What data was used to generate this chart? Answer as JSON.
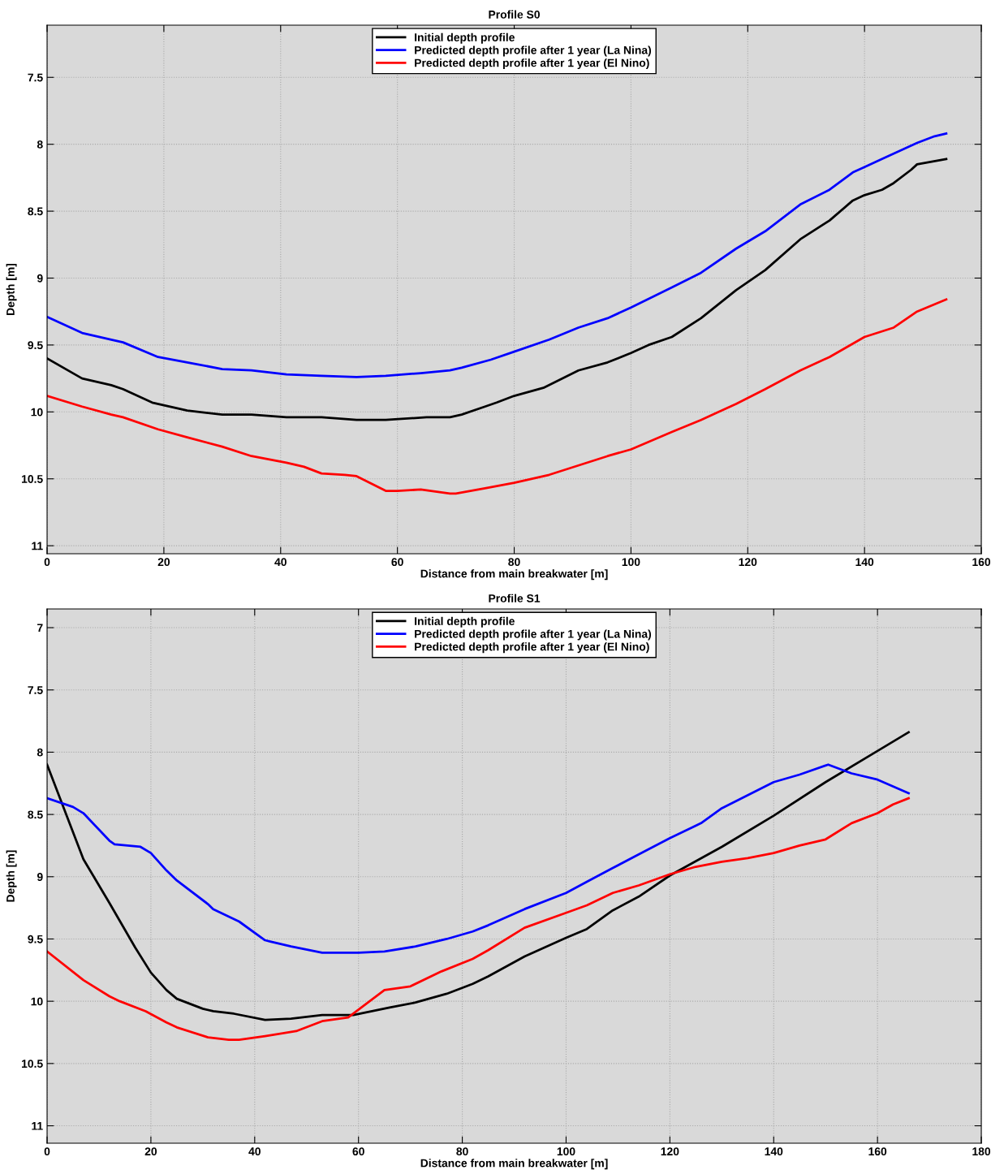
{
  "chart_data": [
    {
      "type": "line",
      "title": "Profile S0",
      "xlabel": "Distance from main breakwater [m]",
      "ylabel": "Depth [m]",
      "xlim": [
        0,
        160
      ],
      "xticks": [
        0,
        20,
        40,
        60,
        80,
        100,
        120,
        140,
        160
      ],
      "ylim": [
        11.06,
        7.11
      ],
      "yticks": [
        7.5,
        8,
        8.5,
        9,
        9.5,
        10,
        10.5,
        11
      ],
      "grid": true,
      "legend": "top",
      "line_style": "solid",
      "marker": "none",
      "series": [
        {
          "name": "Initial depth profile",
          "color": "#000000",
          "x": [
            0,
            6,
            11,
            13,
            18,
            20,
            24,
            30,
            35,
            41,
            47,
            53,
            58,
            65,
            69,
            71,
            75,
            77,
            80,
            85,
            91,
            96,
            100,
            103,
            107,
            112,
            118,
            123,
            129,
            134,
            138,
            140,
            143,
            145,
            148,
            149,
            154
          ],
          "values": [
            9.6,
            9.75,
            9.8,
            9.83,
            9.93,
            9.95,
            9.99,
            10.02,
            10.02,
            10.04,
            10.04,
            10.06,
            10.06,
            10.04,
            10.04,
            10.02,
            9.96,
            9.93,
            9.88,
            9.82,
            9.69,
            9.63,
            9.56,
            9.5,
            9.44,
            9.3,
            9.09,
            8.94,
            8.71,
            8.57,
            8.42,
            8.38,
            8.34,
            8.29,
            8.19,
            8.15,
            8.11
          ]
        },
        {
          "name": "Predicted depth profile after 1 year (La Nina)",
          "color": "#0000ff",
          "x": [
            0,
            6,
            11,
            13,
            19,
            24,
            30,
            35,
            41,
            47,
            53,
            58,
            64,
            69,
            71,
            76,
            80,
            86,
            91,
            96,
            100,
            107,
            112,
            118,
            123,
            129,
            134,
            138,
            140,
            143,
            149,
            152,
            154
          ],
          "values": [
            9.29,
            9.41,
            9.46,
            9.48,
            9.59,
            9.63,
            9.68,
            9.69,
            9.72,
            9.73,
            9.74,
            9.73,
            9.71,
            9.69,
            9.67,
            9.61,
            9.55,
            9.46,
            9.37,
            9.3,
            9.22,
            9.07,
            8.96,
            8.78,
            8.65,
            8.45,
            8.34,
            8.21,
            8.17,
            8.11,
            7.99,
            7.94,
            7.92
          ]
        },
        {
          "name": "Predicted depth profile after 1 year (El Nino)",
          "color": "#ff0000",
          "x": [
            0,
            6,
            11,
            13,
            19,
            24,
            30,
            35,
            41,
            44,
            47,
            51,
            53,
            58,
            60,
            64,
            69,
            70,
            75,
            80,
            86,
            91,
            96,
            100,
            107,
            112,
            118,
            123,
            129,
            134,
            138,
            140,
            145,
            149,
            154
          ],
          "values": [
            9.88,
            9.96,
            10.02,
            10.04,
            10.13,
            10.19,
            10.26,
            10.33,
            10.38,
            10.41,
            10.46,
            10.47,
            10.48,
            10.59,
            10.59,
            10.58,
            10.61,
            10.61,
            10.57,
            10.53,
            10.47,
            10.4,
            10.33,
            10.28,
            10.15,
            10.06,
            9.94,
            9.83,
            9.69,
            9.59,
            9.49,
            9.44,
            9.37,
            9.25,
            9.16
          ]
        }
      ]
    },
    {
      "type": "line",
      "title": "Profile S1",
      "xlabel": "Distance from main breakwater [m]",
      "ylabel": "Depth [m]",
      "xlim": [
        0,
        180
      ],
      "xticks": [
        0,
        20,
        40,
        60,
        80,
        100,
        120,
        140,
        160,
        180
      ],
      "ylim": [
        11.14,
        6.85
      ],
      "yticks": [
        7,
        7.5,
        8,
        8.5,
        9,
        9.5,
        10,
        10.5,
        11
      ],
      "grid": true,
      "legend": "top",
      "line_style": "solid",
      "marker": "none",
      "series": [
        {
          "name": "Initial depth profile",
          "color": "#000000",
          "x": [
            0,
            7,
            12,
            17,
            20,
            23,
            25,
            30,
            32,
            36,
            42,
            47,
            53,
            59,
            66,
            71,
            77,
            82,
            85,
            92,
            100,
            104,
            109,
            114,
            120,
            130,
            140,
            150,
            160,
            166
          ],
          "values": [
            8.1,
            8.86,
            9.21,
            9.57,
            9.77,
            9.91,
            9.98,
            10.06,
            10.08,
            10.1,
            10.15,
            10.14,
            10.11,
            10.11,
            10.05,
            10.01,
            9.94,
            9.86,
            9.8,
            9.64,
            9.49,
            9.42,
            9.27,
            9.16,
            8.99,
            8.76,
            8.51,
            8.24,
            7.99,
            7.84
          ]
        },
        {
          "name": "Predicted depth profile after 1 year (La Nina)",
          "color": "#0000ff",
          "x": [
            0,
            5,
            7,
            12,
            13,
            18,
            20,
            23,
            25,
            31,
            32,
            37,
            42,
            43,
            47,
            53,
            60,
            65,
            71,
            77,
            82,
            85,
            92,
            100,
            104,
            109,
            114,
            120,
            126,
            130,
            140,
            145,
            150.5,
            155,
            160,
            166
          ],
          "values": [
            8.37,
            8.44,
            8.49,
            8.71,
            8.74,
            8.76,
            8.81,
            8.95,
            9.03,
            9.22,
            9.26,
            9.36,
            9.51,
            9.52,
            9.56,
            9.61,
            9.61,
            9.6,
            9.56,
            9.5,
            9.44,
            9.39,
            9.26,
            9.13,
            9.04,
            8.93,
            8.82,
            8.69,
            8.57,
            8.45,
            8.24,
            8.18,
            8.1,
            8.17,
            8.22,
            8.33
          ]
        },
        {
          "name": "Predicted depth profile after 1 year (El Nino)",
          "color": "#ff0000",
          "x": [
            0,
            7,
            12,
            14,
            19,
            23,
            25,
            31,
            35,
            37,
            42,
            48,
            53,
            58,
            65,
            70,
            76,
            82,
            85,
            92,
            100,
            104,
            109,
            114,
            120,
            125,
            130,
            135,
            140,
            145,
            150,
            155,
            160,
            163,
            166
          ],
          "values": [
            9.6,
            9.83,
            9.96,
            10.0,
            10.08,
            10.17,
            10.21,
            10.29,
            10.31,
            10.31,
            10.28,
            10.24,
            10.16,
            10.13,
            9.91,
            9.88,
            9.76,
            9.66,
            9.59,
            9.41,
            9.29,
            9.23,
            9.13,
            9.07,
            8.98,
            8.92,
            8.88,
            8.85,
            8.81,
            8.75,
            8.7,
            8.57,
            8.49,
            8.42,
            8.37
          ]
        }
      ]
    }
  ]
}
